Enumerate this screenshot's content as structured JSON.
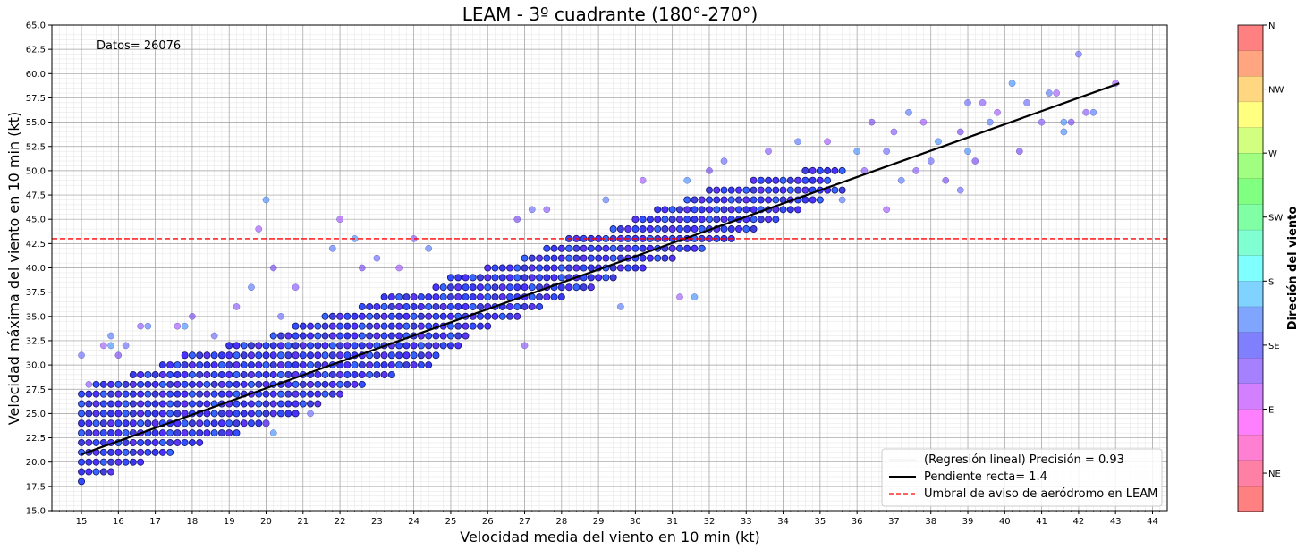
{
  "chart_data": {
    "type": "scatter",
    "title": "LEAM - 3º cuadrante (180°-270°)",
    "xlabel": "Velocidad media del viento en 10 min (kt)",
    "ylabel": "Velocidad máxima del viento en 10 min (kt)",
    "xlim": [
      14.2,
      44.4
    ],
    "ylim": [
      15.0,
      65.0
    ],
    "xticks": [
      "15",
      "16",
      "17",
      "18",
      "19",
      "20",
      "21",
      "22",
      "23",
      "24",
      "25",
      "26",
      "27",
      "28",
      "29",
      "30",
      "31",
      "32",
      "33",
      "34",
      "35",
      "36",
      "37",
      "38",
      "39",
      "40",
      "41",
      "42",
      "43",
      "44"
    ],
    "yticks": [
      "15.0",
      "17.5",
      "20.0",
      "22.5",
      "25.0",
      "27.5",
      "30.0",
      "32.5",
      "35.0",
      "37.5",
      "40.0",
      "42.5",
      "45.0",
      "47.5",
      "50.0",
      "52.5",
      "55.0",
      "57.5",
      "60.0",
      "62.5",
      "65.0"
    ],
    "grid": true,
    "annotation": "Datos= 26076",
    "regression": {
      "slope": 1.4,
      "x": [
        15.0,
        43.1
      ],
      "y": [
        20.8,
        59.0
      ]
    },
    "threshold": 43.0,
    "legend": {
      "placement": "lower right",
      "entries": [
        "(Regresión lineal) Precisión = 0.93",
        "Pendiente recta= 1.4",
        "Umbral de aviso de aeródromo en LEAM"
      ]
    },
    "colorbar": {
      "label": "Direción del viento",
      "ticks": [
        "N",
        "NW",
        "W",
        "SW",
        "S",
        "SE",
        "E",
        "NE"
      ],
      "colors": [
        "#ff8080",
        "#ffa580",
        "#ffd780",
        "#ffff80",
        "#d2ff80",
        "#a0ff80",
        "#80ff80",
        "#80ffa5",
        "#80ffd2",
        "#80ffff",
        "#80d2ff",
        "#80a5ff",
        "#8080ff",
        "#a580ff",
        "#d280ff",
        "#ff80ff",
        "#ff80d2",
        "#ff80a5",
        "#ff8080"
      ]
    },
    "band_rows": [
      {
        "y": 18,
        "x0": 15.0,
        "x1": 15.0
      },
      {
        "y": 19,
        "x0": 15.0,
        "x1": 15.8
      },
      {
        "y": 20,
        "x0": 15.0,
        "x1": 16.6
      },
      {
        "y": 21,
        "x0": 15.0,
        "x1": 17.4
      },
      {
        "y": 22,
        "x0": 15.0,
        "x1": 18.2
      },
      {
        "y": 23,
        "x0": 15.0,
        "x1": 19.2
      },
      {
        "y": 24,
        "x0": 15.0,
        "x1": 20.0
      },
      {
        "y": 25,
        "x0": 15.0,
        "x1": 20.8
      },
      {
        "y": 26,
        "x0": 15.0,
        "x1": 21.4
      },
      {
        "y": 27,
        "x0": 15.0,
        "x1": 22.0
      },
      {
        "y": 28,
        "x0": 15.4,
        "x1": 22.6
      },
      {
        "y": 29,
        "x0": 16.4,
        "x1": 23.4
      },
      {
        "y": 30,
        "x0": 17.2,
        "x1": 24.4
      },
      {
        "y": 31,
        "x0": 17.8,
        "x1": 24.6
      },
      {
        "y": 32,
        "x0": 19.0,
        "x1": 25.2
      },
      {
        "y": 33,
        "x0": 20.2,
        "x1": 25.4
      },
      {
        "y": 34,
        "x0": 20.8,
        "x1": 26.0
      },
      {
        "y": 35,
        "x0": 21.6,
        "x1": 26.8
      },
      {
        "y": 36,
        "x0": 22.6,
        "x1": 27.4
      },
      {
        "y": 37,
        "x0": 23.2,
        "x1": 28.0
      },
      {
        "y": 38,
        "x0": 24.6,
        "x1": 28.8
      },
      {
        "y": 39,
        "x0": 25.0,
        "x1": 29.4
      },
      {
        "y": 40,
        "x0": 26.0,
        "x1": 30.2
      },
      {
        "y": 41,
        "x0": 27.0,
        "x1": 31.0
      },
      {
        "y": 42,
        "x0": 27.6,
        "x1": 31.8
      },
      {
        "y": 43,
        "x0": 28.2,
        "x1": 32.6
      },
      {
        "y": 44,
        "x0": 29.4,
        "x1": 33.2
      },
      {
        "y": 45,
        "x0": 30.0,
        "x1": 33.8
      },
      {
        "y": 46,
        "x0": 30.6,
        "x1": 34.4
      },
      {
        "y": 47,
        "x0": 31.4,
        "x1": 35.0
      },
      {
        "y": 48,
        "x0": 32.0,
        "x1": 35.6
      },
      {
        "y": 49,
        "x0": 33.2,
        "x1": 35.2
      },
      {
        "y": 50,
        "x0": 34.6,
        "x1": 35.6
      }
    ],
    "scattered_points": [
      [
        15.0,
        31
      ],
      [
        15.2,
        28
      ],
      [
        15.8,
        33
      ],
      [
        15.6,
        32
      ],
      [
        15.8,
        32
      ],
      [
        16.0,
        31
      ],
      [
        16.2,
        32
      ],
      [
        16.6,
        34
      ],
      [
        16.8,
        34
      ],
      [
        17.6,
        34
      ],
      [
        17.8,
        34
      ],
      [
        18.0,
        35
      ],
      [
        18.6,
        33
      ],
      [
        19.2,
        36
      ],
      [
        19.6,
        38
      ],
      [
        19.8,
        44
      ],
      [
        20.0,
        47
      ],
      [
        20.2,
        40
      ],
      [
        20.4,
        35
      ],
      [
        20.8,
        38
      ],
      [
        21.8,
        42
      ],
      [
        22.0,
        45
      ],
      [
        22.4,
        43
      ],
      [
        22.6,
        40
      ],
      [
        23.0,
        41
      ],
      [
        24.0,
        43
      ],
      [
        24.4,
        42
      ],
      [
        23.6,
        40
      ],
      [
        20.2,
        23
      ],
      [
        20.0,
        24
      ],
      [
        21.2,
        25
      ],
      [
        27.0,
        32
      ],
      [
        29.6,
        36
      ],
      [
        31.2,
        37
      ],
      [
        31.6,
        37
      ],
      [
        26.8,
        45
      ],
      [
        27.2,
        46
      ],
      [
        27.6,
        46
      ],
      [
        29.2,
        47
      ],
      [
        30.2,
        49
      ],
      [
        31.4,
        49
      ],
      [
        32.0,
        50
      ],
      [
        32.4,
        51
      ],
      [
        33.6,
        52
      ],
      [
        34.4,
        53
      ],
      [
        35.2,
        53
      ],
      [
        36.0,
        52
      ],
      [
        36.4,
        55
      ],
      [
        36.8,
        52
      ],
      [
        37.0,
        54
      ],
      [
        37.4,
        56
      ],
      [
        37.8,
        55
      ],
      [
        38.2,
        53
      ],
      [
        38.8,
        54
      ],
      [
        39.0,
        57
      ],
      [
        39.4,
        57
      ],
      [
        39.6,
        55
      ],
      [
        39.8,
        56
      ],
      [
        40.2,
        59
      ],
      [
        40.4,
        52
      ],
      [
        40.6,
        57
      ],
      [
        41.0,
        55
      ],
      [
        41.2,
        58
      ],
      [
        41.4,
        58
      ],
      [
        41.6,
        55
      ],
      [
        41.8,
        55
      ],
      [
        42.0,
        62
      ],
      [
        42.2,
        56
      ],
      [
        42.4,
        56
      ],
      [
        43.0,
        59
      ],
      [
        41.6,
        54
      ],
      [
        38.4,
        49
      ],
      [
        38.0,
        51
      ],
      [
        37.6,
        50
      ],
      [
        37.2,
        49
      ],
      [
        36.8,
        46
      ],
      [
        39.0,
        52
      ],
      [
        39.2,
        51
      ],
      [
        38.8,
        48
      ],
      [
        36.2,
        50
      ],
      [
        35.6,
        47
      ]
    ]
  }
}
